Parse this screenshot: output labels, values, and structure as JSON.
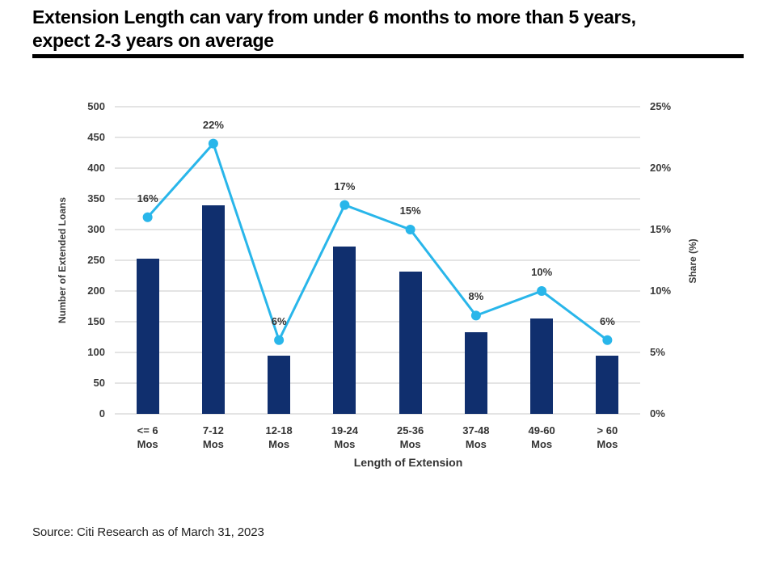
{
  "title": {
    "line1": "Extension Length can vary from under 6 months to more than 5 years,",
    "line2": "expect 2-3 years on average"
  },
  "source_note": "Source: Citi Research as of March 31, 2023",
  "chart_data": {
    "type": "combo_bar_line",
    "title": "",
    "categories": [
      "<= 6\nMos",
      "7-12\nMos",
      "12-18\nMos",
      "19-24\nMos",
      "25-36\nMos",
      "37-48\nMos",
      "49-60\nMos",
      "> 60\nMos"
    ],
    "xlabel": "Length of Extension",
    "grid": true,
    "legend": "none",
    "background": "#ffffff",
    "gridline_color": "#e4e4e4",
    "left_axis": {
      "title": "Number of Extended Loans",
      "min": 0,
      "max": 500,
      "step": 50,
      "tick_labels": [
        "0",
        "50",
        "100",
        "150",
        "200",
        "250",
        "300",
        "350",
        "400",
        "450",
        "500"
      ]
    },
    "right_axis": {
      "title": "Share (%)",
      "min": 0,
      "max": 25,
      "step": 5,
      "tick_labels": [
        "0%",
        "5%",
        "10%",
        "15%",
        "20%",
        "25%"
      ]
    },
    "series": [
      {
        "name": "Number of Extended Loans",
        "type": "bar",
        "axis": "left",
        "color": "#102f6e",
        "values": [
          253,
          340,
          95,
          272,
          232,
          133,
          155,
          95
        ]
      },
      {
        "name": "Share (%)",
        "type": "line",
        "axis": "right",
        "color": "#29b6ea",
        "values": [
          16,
          22,
          6,
          17,
          15,
          8,
          10,
          6
        ],
        "point_labels": [
          "16%",
          "22%",
          "6%",
          "17%",
          "15%",
          "8%",
          "10%",
          "6%"
        ]
      }
    ]
  }
}
